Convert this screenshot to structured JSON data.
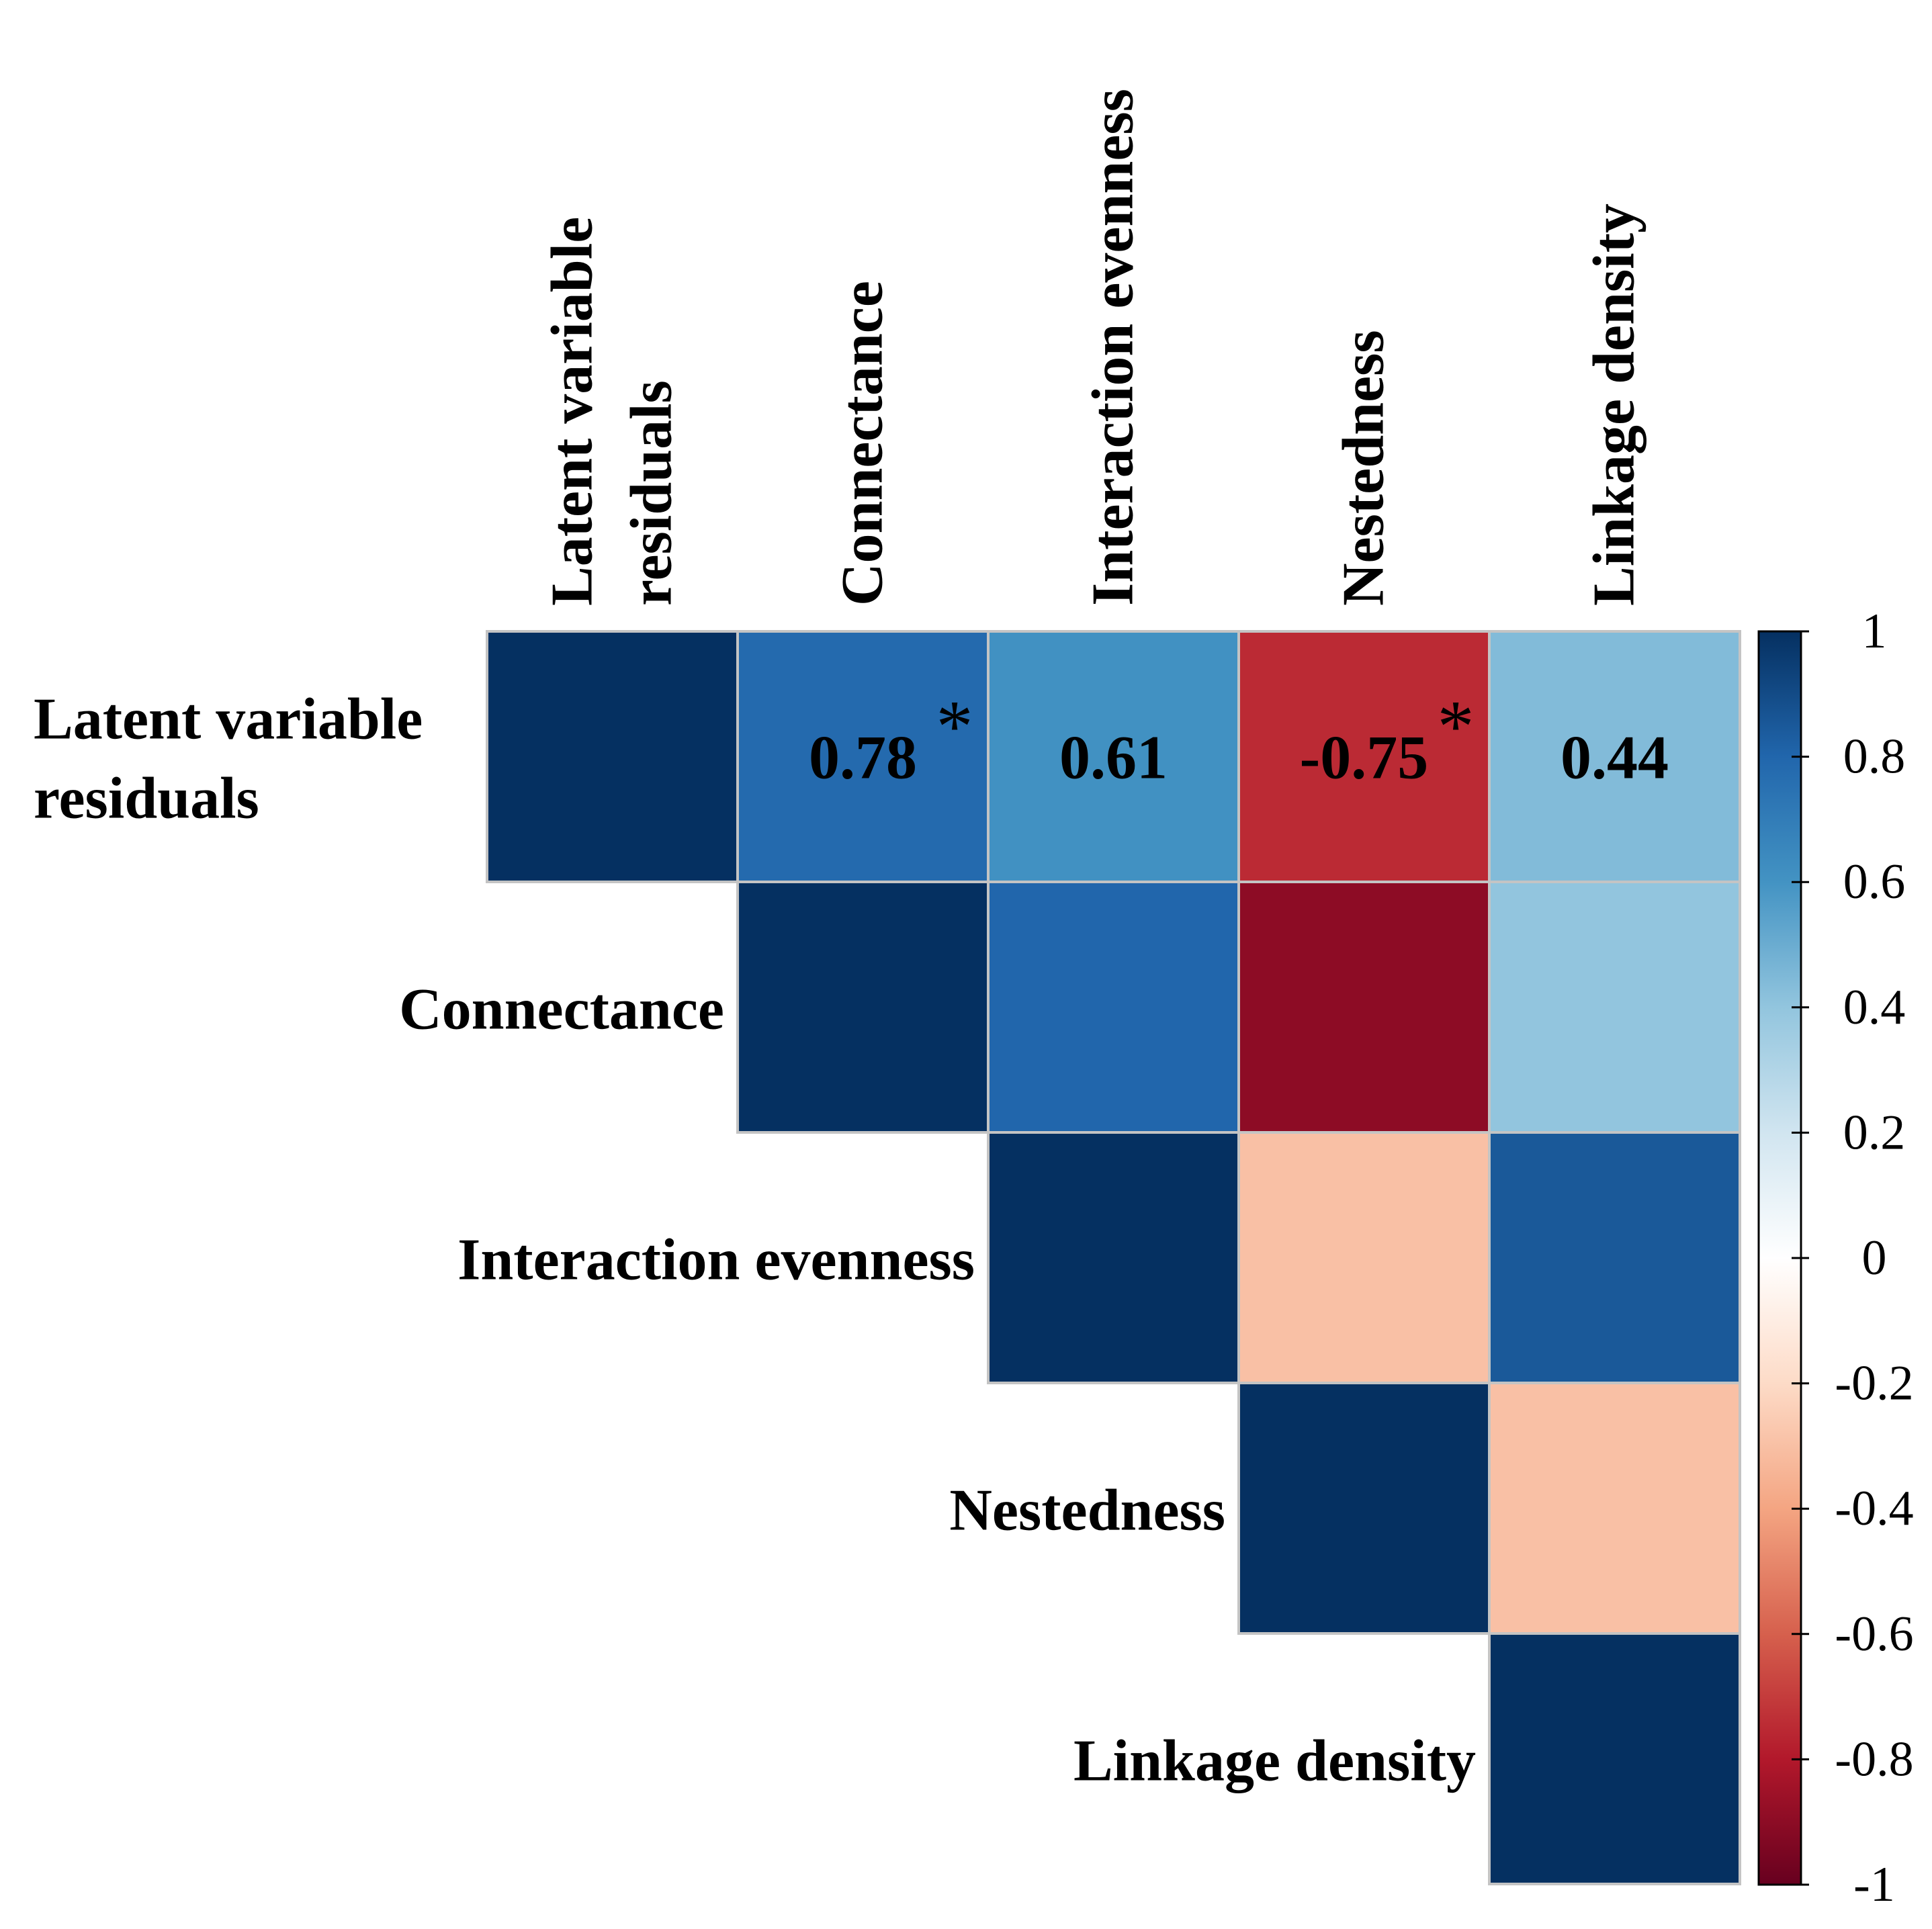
{
  "chart_data": {
    "type": "heatmap",
    "subtype": "correlation-matrix-upper-triangle",
    "variables": [
      "Latent variable residuals",
      "Connectance",
      "Interaction evenness",
      "Nestedness",
      "Linkage density"
    ],
    "label_lines": [
      [
        "Latent variable",
        "residuals"
      ],
      [
        "Connectance"
      ],
      [
        "Interaction evenness"
      ],
      [
        "Nestedness"
      ],
      [
        "Linkage density"
      ]
    ],
    "matrix": [
      [
        1.0,
        0.78,
        0.61,
        -0.75,
        0.44
      ],
      [
        null,
        1.0,
        0.8,
        -0.9,
        0.4
      ],
      [
        null,
        null,
        1.0,
        -0.3,
        0.85
      ],
      [
        null,
        null,
        null,
        1.0,
        -0.3
      ],
      [
        null,
        null,
        null,
        null,
        1.0
      ]
    ],
    "annotations": [
      {
        "row": 0,
        "col": 1,
        "text": "0.78",
        "significant": true
      },
      {
        "row": 0,
        "col": 2,
        "text": "0.61",
        "significant": false
      },
      {
        "row": 0,
        "col": 3,
        "text": "-0.75",
        "significant": true
      },
      {
        "row": 0,
        "col": 4,
        "text": "0.44",
        "significant": false
      }
    ],
    "significance_marker": "*",
    "colorbar": {
      "range": [
        -1,
        1
      ],
      "ticks": [
        "1",
        "0.8",
        "0.6",
        "0.4",
        "0.2",
        "0",
        "-0.2",
        "-0.4",
        "-0.6",
        "-0.8",
        "-1"
      ],
      "tick_values": [
        1,
        0.8,
        0.6,
        0.4,
        0.2,
        0,
        -0.2,
        -0.4,
        -0.6,
        -0.8,
        -1
      ],
      "colors": [
        "#67001F",
        "#B2182B",
        "#D6604D",
        "#F4A582",
        "#FDDBC7",
        "#FFFFFF",
        "#D1E5F0",
        "#92C5DE",
        "#4393C3",
        "#2166AC",
        "#053061"
      ],
      "placement": "right"
    }
  }
}
